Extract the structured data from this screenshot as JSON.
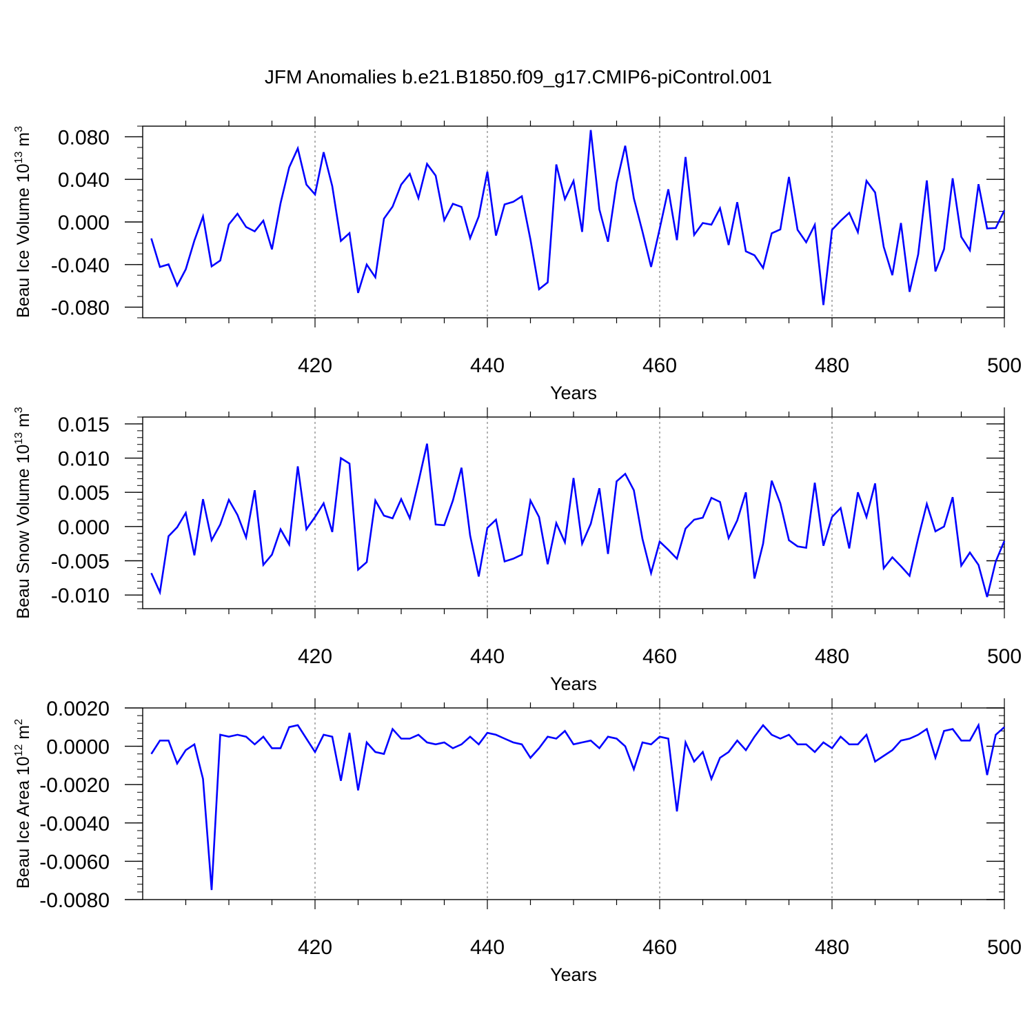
{
  "title": "JFM Anomalies b.e21.B1850.f09_g17.CMIP6-piControl.001",
  "colors": {
    "line": "#0000ff",
    "axis": "#000000",
    "grid": "#666666"
  },
  "chart_data": [
    {
      "type": "line",
      "panel": "top",
      "xlabel": "Years",
      "ylabel": {
        "text": "Beau Ice Volume 10",
        "exp": "13",
        "unit": " m",
        "unit_exp": "3"
      },
      "xlim": [
        400,
        500
      ],
      "ylim": [
        -0.09,
        0.09
      ],
      "xticks": [
        420,
        440,
        460,
        480,
        500
      ],
      "xtick_labels": [
        "420",
        "440",
        "460",
        "480",
        "500"
      ],
      "yticks": [
        0.08,
        0.04,
        0.0,
        -0.04,
        -0.08
      ],
      "ytick_labels": [
        "0.080",
        "0.040",
        "0.000",
        "-0.040",
        "-0.080"
      ],
      "yminor_step": 0.01,
      "x_start": 401,
      "values": [
        -0.0155,
        -0.0423,
        -0.0398,
        -0.0598,
        -0.0444,
        -0.0174,
        0.0052,
        -0.0417,
        -0.0362,
        -0.0023,
        0.0077,
        -0.0047,
        -0.0088,
        0.0012,
        -0.0258,
        0.0176,
        0.0513,
        0.0691,
        0.0351,
        0.0259,
        0.0655,
        0.0337,
        -0.0178,
        -0.0105,
        -0.0666,
        -0.04,
        -0.052,
        0.0031,
        0.0144,
        0.0351,
        0.0452,
        0.0224,
        0.0545,
        0.0435,
        0.0016,
        0.0171,
        0.0141,
        -0.0152,
        0.0052,
        0.0472,
        -0.0128,
        0.0165,
        0.0189,
        0.0241,
        -0.0165,
        -0.0632,
        -0.0568,
        0.054,
        0.0214,
        0.0386,
        -0.0093,
        0.0863,
        0.0118,
        -0.0186,
        0.0366,
        0.0716,
        0.0223,
        -0.009,
        -0.0422,
        -0.0064,
        0.0307,
        -0.0171,
        0.061,
        -0.0122,
        -0.001,
        -0.0025,
        0.0129,
        -0.0216,
        0.0186,
        -0.0276,
        -0.0313,
        -0.0432,
        -0.0106,
        -0.007,
        0.0423,
        -0.0074,
        -0.0191,
        -0.0027,
        -0.078,
        -0.0074,
        0.0011,
        0.0086,
        -0.0096,
        0.0386,
        0.0277,
        -0.0234,
        -0.05,
        -0.001,
        -0.0656,
        -0.0304,
        0.039,
        -0.0465,
        -0.0255,
        0.041,
        -0.014,
        -0.0266,
        0.0355,
        -0.0061,
        -0.0057,
        0.0109
      ]
    },
    {
      "type": "line",
      "panel": "middle",
      "xlabel": "Years",
      "ylabel": {
        "text": "Beau Snow Volume 10",
        "exp": "13",
        "unit": " m",
        "unit_exp": "3"
      },
      "xlim": [
        400,
        500
      ],
      "ylim": [
        -0.012,
        0.016
      ],
      "xticks": [
        420,
        440,
        460,
        480,
        500
      ],
      "xtick_labels": [
        "420",
        "440",
        "460",
        "480",
        "500"
      ],
      "yticks": [
        0.015,
        0.01,
        0.005,
        0.0,
        -0.005,
        -0.01
      ],
      "ytick_labels": [
        "0.015",
        "0.010",
        "0.005",
        "0.000",
        "-0.005",
        "-0.010"
      ],
      "yminor_step": 0.001,
      "x_start": 401,
      "values": [
        -0.0068,
        -0.0096,
        -0.0014,
        -0.0001,
        0.002,
        -0.0042,
        0.004,
        -0.002,
        0.0003,
        0.0039,
        0.0017,
        -0.0016,
        0.0053,
        -0.0056,
        -0.0041,
        -0.0004,
        -0.0026,
        0.0088,
        -0.0004,
        0.0014,
        0.0034,
        -0.0008,
        0.01,
        0.0092,
        -0.0063,
        -0.0052,
        0.0038,
        0.0016,
        0.0012,
        0.004,
        0.0012,
        0.0065,
        0.0121,
        0.0003,
        0.0002,
        0.0038,
        0.0086,
        -0.0013,
        -0.0073,
        -0.0002,
        0.001,
        -0.0051,
        -0.0047,
        -0.0041,
        0.0038,
        0.0014,
        -0.0055,
        0.0005,
        -0.0023,
        0.0071,
        -0.0025,
        0.0004,
        0.0056,
        -0.004,
        0.0066,
        0.0077,
        0.0053,
        -0.0018,
        -0.0068,
        -0.0022,
        -0.0034,
        -0.0047,
        -0.0003,
        0.001,
        0.0013,
        0.0042,
        0.0036,
        -0.0017,
        0.0009,
        0.005,
        -0.0076,
        -0.0025,
        0.0067,
        0.0034,
        -0.002,
        -0.0029,
        -0.0031,
        0.0064,
        -0.0028,
        0.0014,
        0.0027,
        -0.0032,
        0.005,
        0.0014,
        0.0063,
        -0.0061,
        -0.0045,
        -0.0058,
        -0.0072,
        -0.0017,
        0.0033,
        -0.0007,
        0.0,
        0.0043,
        -0.0057,
        -0.0038,
        -0.0056,
        -0.0103,
        -0.0051,
        -0.0021
      ]
    },
    {
      "type": "line",
      "panel": "bottom",
      "xlabel": "Years",
      "ylabel": {
        "text": "Beau Ice Area 10",
        "exp": "12",
        "unit": " m",
        "unit_exp": "2"
      },
      "xlim": [
        400,
        500
      ],
      "ylim": [
        -0.008,
        0.002
      ],
      "xticks": [
        420,
        440,
        460,
        480,
        500
      ],
      "xtick_labels": [
        "420",
        "440",
        "460",
        "480",
        "500"
      ],
      "yticks": [
        0.002,
        0.0,
        -0.002,
        -0.004,
        -0.006,
        -0.008
      ],
      "ytick_labels": [
        "0.0020",
        "0.0000",
        "-0.0020",
        "-0.0040",
        "-0.0060",
        "-0.0080"
      ],
      "yminor_step": 0.0004,
      "x_start": 401,
      "values": [
        -0.0004,
        0.0003,
        0.0003,
        -0.0009,
        -0.0002,
        0.0001,
        -0.0017,
        -0.0075,
        0.0006,
        0.0005,
        0.0006,
        0.0005,
        0.0001,
        0.0005,
        -0.0001,
        -0.0001,
        0.001,
        0.0011,
        0.0004,
        -0.0003,
        0.0006,
        0.0005,
        -0.0018,
        0.0007,
        -0.0023,
        0.0002,
        -0.0003,
        -0.0004,
        0.0009,
        0.0004,
        0.0004,
        0.0006,
        0.0002,
        0.0001,
        0.0002,
        -0.0001,
        0.0001,
        0.0005,
        0.0001,
        0.0007,
        0.0006,
        0.0004,
        0.0002,
        0.0001,
        -0.0006,
        -0.0001,
        0.0005,
        0.0004,
        0.0008,
        0.0001,
        0.0002,
        0.0003,
        -0.0001,
        0.0005,
        0.0004,
        0.0,
        -0.0012,
        0.0002,
        0.0001,
        0.0005,
        0.0004,
        -0.0034,
        0.0002,
        -0.0008,
        -0.0003,
        -0.0017,
        -0.0006,
        -0.0003,
        0.0003,
        -0.0002,
        0.0005,
        0.0011,
        0.0006,
        0.0004,
        0.0006,
        0.0001,
        0.0001,
        -0.0003,
        0.0002,
        -0.0001,
        0.0005,
        0.0001,
        0.0001,
        0.0006,
        -0.0008,
        -0.0005,
        -0.0002,
        0.0003,
        0.0004,
        0.0006,
        0.0009,
        -0.0006,
        0.0008,
        0.0009,
        0.0003,
        0.0003,
        0.0011,
        -0.0015,
        0.0006,
        0.001
      ]
    }
  ]
}
